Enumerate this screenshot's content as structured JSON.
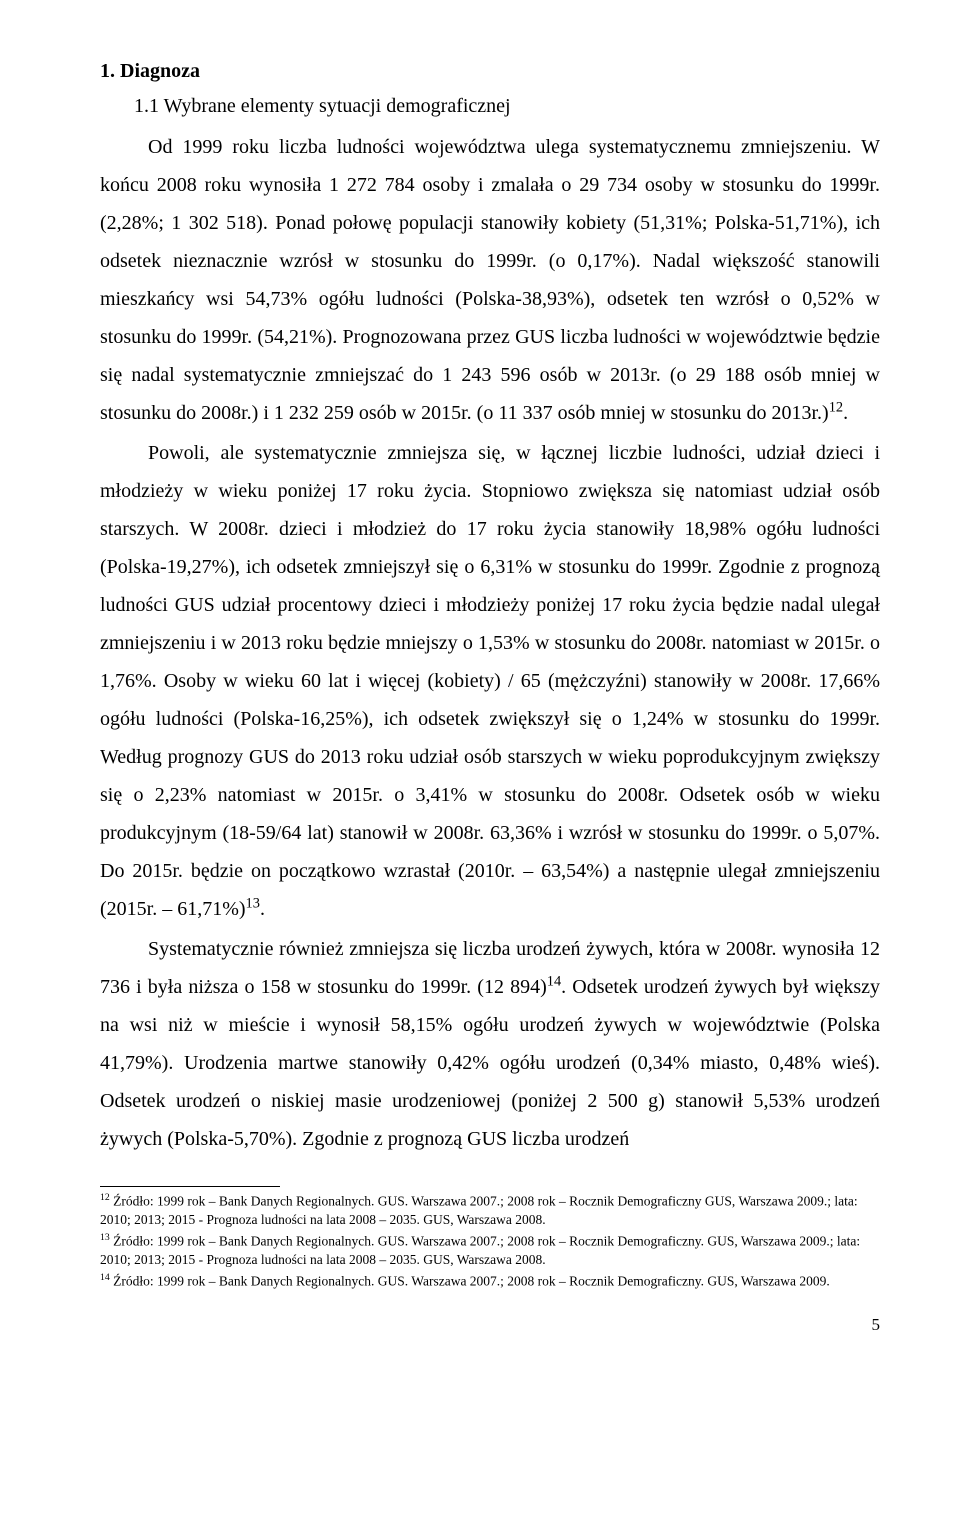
{
  "heading1": "1. Diagnoza",
  "heading2": "1.1 Wybrane elementy sytuacji demograficznej",
  "paragraphs": {
    "p1a": "Od 1999 roku liczba ludności województwa ulega systematycznemu zmniejszeniu. W końcu 2008 roku wynosiła 1 272 784 osoby i zmalała o 29 734 osoby w stosunku do 1999r. (2,28%; 1 302 518). Ponad połowę populacji stanowiły kobiety (51,31%; Polska-51,71%), ich odsetek nieznacznie wzrósł w stosunku do 1999r. (o 0,17%). Nadal większość stanowili mieszkańcy wsi 54,73% ogółu ludności (Polska-38,93%), odsetek ten wzrósł o 0,52% w stosunku do 1999r. (54,21%). Prognozowana przez GUS liczba ludności w województwie będzie się nadal systematycznie zmniejszać do 1 243 596 osób w 2013r. (o 29 188 osób mniej w stosunku do 2008r.) i 1 232 259 osób w 2015r. (o 11 337 osób mniej w stosunku do 2013r.)",
    "p1b": ".",
    "p2a": "Powoli, ale systematycznie zmniejsza się, w łącznej liczbie ludności, udział dzieci i młodzieży w wieku poniżej 17 roku życia. Stopniowo zwiększa się natomiast udział osób starszych. W 2008r. dzieci i młodzież do 17 roku życia stanowiły 18,98% ogółu ludności (Polska-19,27%), ich odsetek zmniejszył się o 6,31% w stosunku do 1999r. Zgodnie z prognozą ludności GUS udział procentowy dzieci i młodzieży poniżej 17 roku życia będzie nadal ulegał zmniejszeniu i w 2013 roku będzie mniejszy o 1,53% w stosunku do 2008r. natomiast w 2015r. o 1,76%. Osoby w wieku 60 lat i więcej (kobiety) / 65 (mężczyźni) stanowiły w 2008r. 17,66% ogółu ludności (Polska-16,25%), ich odsetek zwiększył się o 1,24% w stosunku do 1999r. Według prognozy GUS do 2013 roku udział osób starszych w wieku poprodukcyjnym zwiększy się o 2,23% natomiast w 2015r. o 3,41% w stosunku do 2008r. Odsetek osób w wieku produkcyjnym (18-59/64 lat) stanowił w 2008r. 63,36% i wzrósł w stosunku do 1999r. o 5,07%. Do 2015r. będzie on początkowo wzrastał (2010r. – 63,54%) a następnie ulegał zmniejszeniu (2015r. – 61,71%)",
    "p2b": ".",
    "p3a": "Systematycznie również zmniejsza się liczba urodzeń żywych, która w 2008r. wynosiła 12 736 i była niższa o 158 w stosunku do 1999r. (12 894)",
    "p3b": ". Odsetek urodzeń żywych był większy na wsi niż w mieście i wynosił 58,15% ogółu urodzeń żywych w województwie (Polska 41,79%). Urodzenia martwe stanowiły 0,42% ogółu urodzeń (0,34% miasto, 0,48% wieś). Odsetek urodzeń o niskiej masie urodzeniowej (poniżej 2 500 g) stanowił 5,53% urodzeń żywych (Polska-5,70%). Zgodnie z prognozą GUS liczba urodzeń"
  },
  "sup": {
    "s12": "12",
    "s13": "13",
    "s14": "14"
  },
  "footnotes": {
    "f12": " Źródło: 1999 rok – Bank Danych Regionalnych. GUS. Warszawa 2007.; 2008 rok – Rocznik Demograficzny GUS, Warszawa 2009.; lata: 2010; 2013; 2015 - Prognoza ludności na lata 2008 – 2035. GUS, Warszawa 2008.",
    "f13": " Źródło: 1999 rok – Bank Danych Regionalnych. GUS. Warszawa 2007.; 2008 rok – Rocznik Demograficzny. GUS, Warszawa 2009.; lata: 2010; 2013; 2015 - Prognoza ludności na lata 2008 – 2035. GUS, Warszawa 2008.",
    "f14": " Źródło: 1999 rok – Bank Danych Regionalnych. GUS. Warszawa 2007.; 2008 rok – Rocznik Demograficzny. GUS, Warszawa 2009."
  },
  "footnote_sup": {
    "s12": "12",
    "s13": "13",
    "s14": "14"
  },
  "pagenum": "5"
}
